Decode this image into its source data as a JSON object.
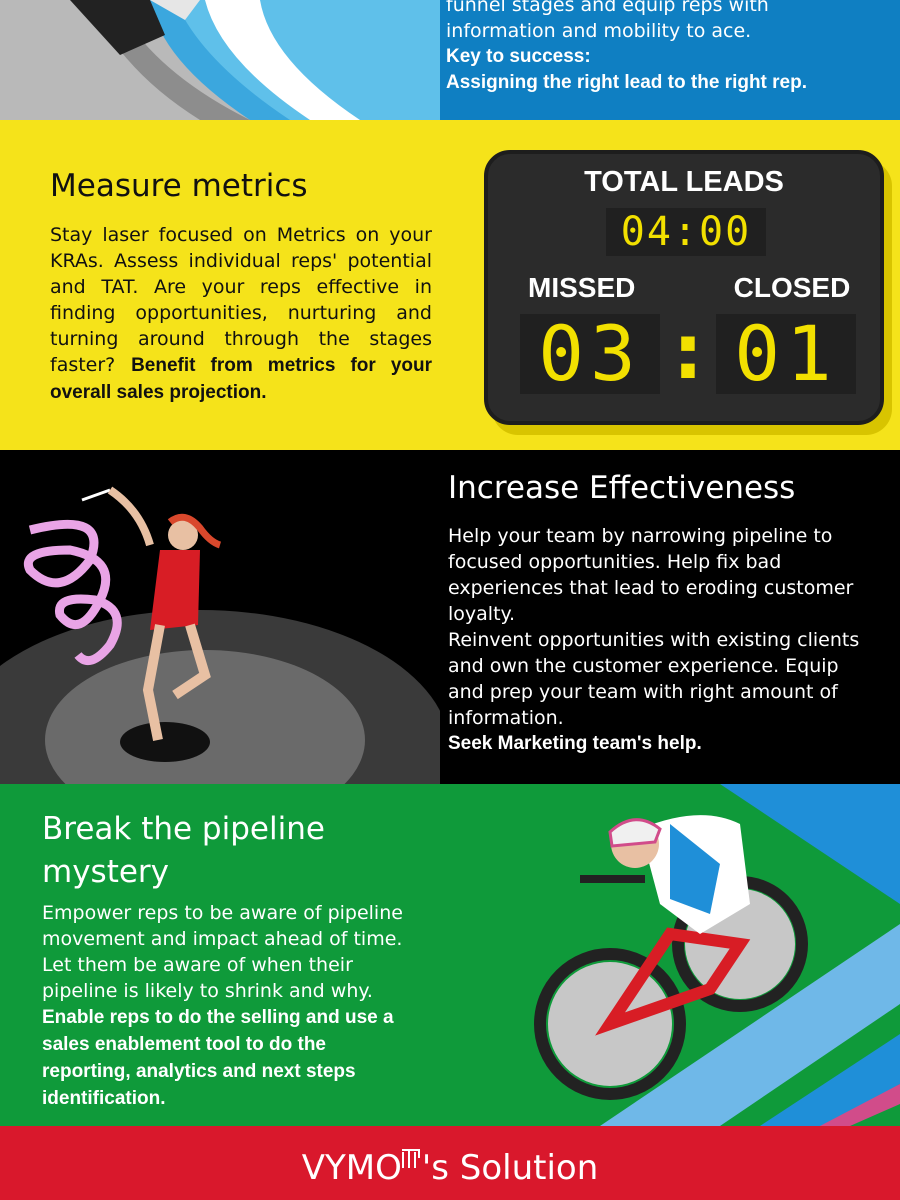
{
  "top_section": {
    "line1": "funnel stages and equip reps with",
    "line2": "information and mobility to ace.",
    "key_label": "Key to success:",
    "key_text": "Assigning the right lead to the right rep."
  },
  "metrics_section": {
    "title": "Measure metrics",
    "body_plain": "Stay laser focused on Metrics on your KRAs. Assess individual reps' potential and TAT. Are your reps effective in finding opportunities, nurturing and turning around through the stages faster? ",
    "body_bold": "Benefit from metrics for your overall sales projection.",
    "scoreboard": {
      "total_label": "TOTAL LEADS",
      "total_value": "04:00",
      "missed_label": "MISSED",
      "missed_value": "03",
      "closed_label": "CLOSED",
      "closed_value": "01",
      "separator": ":"
    }
  },
  "effectiveness_section": {
    "title": "Increase Effectiveness",
    "para1": "Help your team by narrowing pipeline to focused opportunities. Help fix bad experiences that lead to eroding customer loyalty.",
    "para2": "Reinvent opportunities with existing clients and own the customer experience. Equip and prep your team with right amount of information.",
    "bold": "Seek Marketing team's help."
  },
  "pipeline_section": {
    "title": "Break the pipeline mystery",
    "body_plain": "Empower reps to be aware of pipeline movement and impact ahead of time. Let them be aware of when their pipeline is likely to shrink and why. ",
    "body_bold": "Enable reps to do the selling and use a sales enablement tool to do the reporting, analytics and next steps identification."
  },
  "footer": {
    "brand": "VYMO",
    "suffix": "'s Solution"
  },
  "icons": [
    "bobsled-illustration",
    "gymnast-ribbon-illustration",
    "cyclist-illustration",
    "vymo-logo-icon"
  ],
  "colors": {
    "blue": "#0f7fc2",
    "yellow": "#f5e31a",
    "black": "#000000",
    "green": "#0f9a3a",
    "red": "#d9182c",
    "led": "#f2e000"
  }
}
